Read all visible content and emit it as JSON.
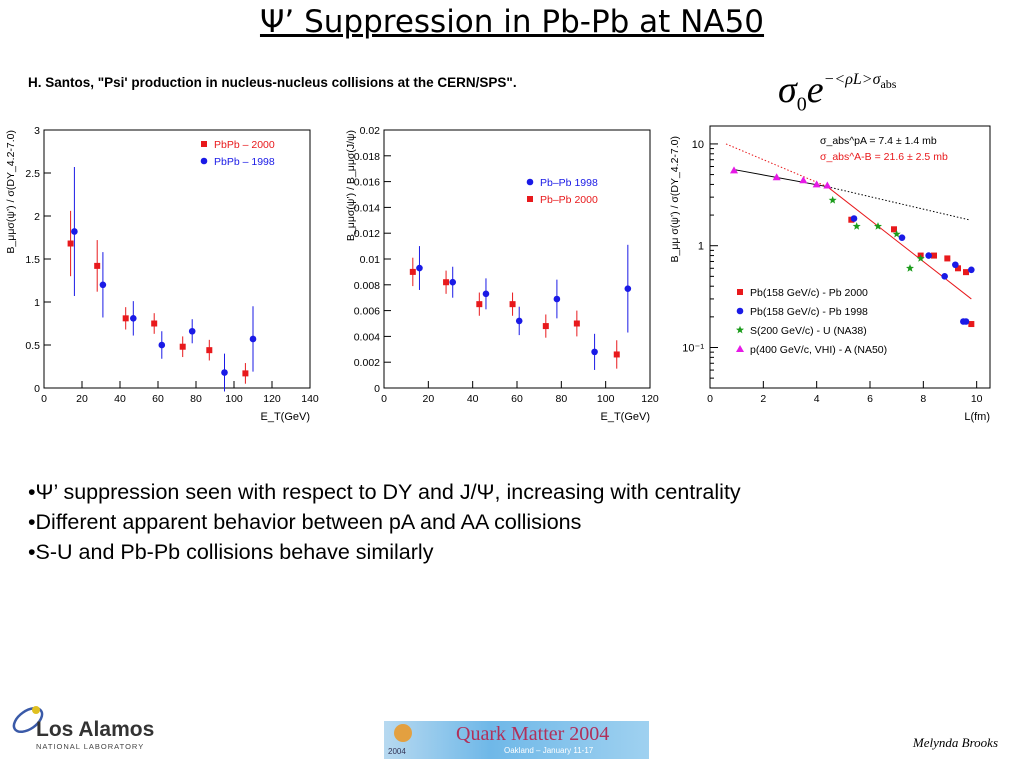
{
  "slide": {
    "title": "Ψ’ Suppression in Pb-Pb at NA50",
    "reference": "H. Santos, \"Psi' production in nucleus-nucleus collisions at the CERN/SPS\".",
    "formula": {
      "sigma": "σ",
      "sub": "0",
      "e": "e",
      "exponent": "−<ρL>σ",
      "exp_sub": "abs"
    },
    "bullets": [
      "•Ψ’ suppression seen with respect to DY and J/Ψ, increasing with centrality",
      "•Different apparent behavior between  pA and AA collisions",
      "•S-U and Pb-Pb collisions behave similarly"
    ],
    "logo": {
      "name": "Los Alamos",
      "subtitle": "NATIONAL LABORATORY"
    },
    "banner": {
      "text": "Quark Matter 2004",
      "subtext": "Oakland – January 11-17",
      "year": "2004"
    },
    "author": "Melynda Brooks"
  },
  "colors": {
    "red": "#e8191c",
    "blue": "#1a1ae6",
    "green": "#1c9c1c",
    "magenta": "#e619e6"
  },
  "chart_data": [
    {
      "type": "scatter",
      "xlabel": "E_T(GeV)",
      "ylabel": "B_μμσ(ψ’) / σ(DY_4.2-7.0)",
      "xlim": [
        0,
        140
      ],
      "ylim": [
        0,
        3
      ],
      "xticks": [
        0,
        20,
        40,
        60,
        80,
        100,
        120,
        140
      ],
      "yticks": [
        0,
        0.5,
        1,
        1.5,
        2,
        2.5,
        3
      ],
      "legend_position": "top-right",
      "series": [
        {
          "name": "PbPb – 2000",
          "color": "red",
          "marker": "square",
          "x": [
            14,
            28,
            43,
            58,
            73,
            87,
            106
          ],
          "y": [
            1.68,
            1.42,
            0.81,
            0.75,
            0.48,
            0.44,
            0.17
          ],
          "err": [
            0.38,
            0.3,
            0.13,
            0.12,
            0.12,
            0.12,
            0.12
          ]
        },
        {
          "name": "PbPb – 1998",
          "color": "blue",
          "marker": "circle",
          "x": [
            16,
            31,
            47,
            62,
            78,
            95,
            110
          ],
          "y": [
            1.82,
            1.2,
            0.81,
            0.5,
            0.66,
            0.18,
            0.57
          ],
          "err": [
            0.75,
            0.38,
            0.2,
            0.16,
            0.14,
            0.22,
            0.38
          ]
        }
      ]
    },
    {
      "type": "scatter",
      "xlabel": "E_T(GeV)",
      "ylabel": "B_μμσ(ψ’) / B_μμσ(J/ψ)",
      "xlim": [
        0,
        120
      ],
      "ylim": [
        0,
        0.02
      ],
      "xticks": [
        0,
        20,
        40,
        60,
        80,
        100,
        120
      ],
      "yticks": [
        0,
        0.002,
        0.004,
        0.006,
        0.008,
        0.01,
        0.012,
        0.014,
        0.016,
        0.018,
        0.02
      ],
      "legend_position": "top-right",
      "series": [
        {
          "name": "Pb–Pb 1998",
          "color": "blue",
          "marker": "circle",
          "x": [
            16,
            31,
            46,
            61,
            78,
            95,
            110
          ],
          "y": [
            0.0093,
            0.0082,
            0.0073,
            0.0052,
            0.0069,
            0.0028,
            0.0077
          ],
          "err": [
            0.0017,
            0.0012,
            0.0012,
            0.0011,
            0.0015,
            0.0014,
            0.0034
          ]
        },
        {
          "name": "Pb–Pb 2000",
          "color": "red",
          "marker": "square",
          "x": [
            13,
            28,
            43,
            58,
            73,
            87,
            105
          ],
          "y": [
            0.009,
            0.0082,
            0.0065,
            0.0065,
            0.0048,
            0.005,
            0.0026
          ],
          "err": [
            0.0011,
            0.0009,
            0.0009,
            0.0009,
            0.0009,
            0.001,
            0.0011
          ]
        }
      ]
    },
    {
      "type": "scatter",
      "xlabel": "L(fm)",
      "ylabel": "B_μμ σ(ψ’) / σ(DY_4.2-7.0)",
      "xlim": [
        0,
        10.5
      ],
      "ylim": [
        0.04,
        15
      ],
      "log_y": true,
      "xticks": [
        0,
        2,
        4,
        6,
        8,
        10
      ],
      "yticks": [
        10,
        1,
        0.1
      ],
      "annotations": [
        {
          "text": "σ_abs^pA = 7.4 ± 1.4 mb",
          "color": "black"
        },
        {
          "text": "σ_abs^A-B = 21.6 ± 2.5 mb",
          "color": "red"
        }
      ],
      "series": [
        {
          "name": "Pb(158 GeV/c) - Pb 2000",
          "color": "red",
          "marker": "square",
          "x": [
            5.3,
            6.9,
            7.9,
            8.4,
            8.9,
            9.3,
            9.6,
            9.8
          ],
          "y": [
            1.8,
            1.45,
            0.8,
            0.8,
            0.75,
            0.6,
            0.55,
            0.17
          ]
        },
        {
          "name": "Pb(158 GeV/c) - Pb 1998",
          "color": "blue",
          "marker": "circle",
          "x": [
            5.4,
            7.2,
            8.2,
            8.8,
            9.2,
            9.5,
            9.6,
            9.8
          ],
          "y": [
            1.85,
            1.2,
            0.8,
            0.5,
            0.65,
            0.18,
            0.18,
            0.58
          ]
        },
        {
          "name": "S(200 GeV/c) - U (NA38)",
          "color": "green",
          "marker": "star",
          "x": [
            4.6,
            5.5,
            6.3,
            7.0,
            7.5,
            7.9
          ],
          "y": [
            2.8,
            1.55,
            1.55,
            1.3,
            0.6,
            0.75
          ]
        },
        {
          "name": "p(400 GeV/c, VHI) - A (NA50)",
          "color": "magenta",
          "marker": "triangle",
          "x": [
            0.9,
            2.5,
            3.5,
            4.0,
            4.4
          ],
          "y": [
            5.5,
            4.7,
            4.4,
            4.0,
            3.9
          ]
        }
      ],
      "fit_lines": [
        {
          "style": "solid-black",
          "x": [
            0.9,
            4.4
          ],
          "y": [
            5.6,
            3.8
          ]
        },
        {
          "style": "solid-red",
          "x": [
            4.4,
            9.8
          ],
          "y": [
            3.8,
            0.3
          ]
        },
        {
          "style": "dotted-red",
          "x": [
            0.6,
            4.4
          ],
          "y": [
            10,
            3.8
          ]
        },
        {
          "style": "dotted-black",
          "x": [
            4.4,
            9.7
          ],
          "y": [
            3.8,
            1.8
          ]
        }
      ]
    }
  ]
}
